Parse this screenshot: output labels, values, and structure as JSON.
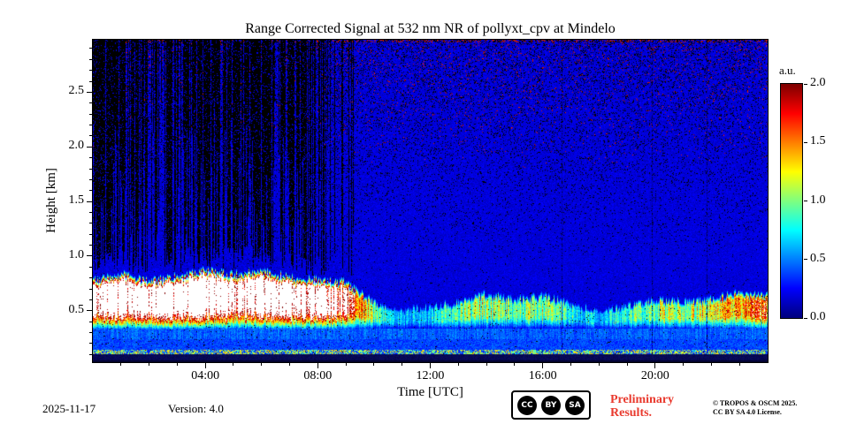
{
  "title": "Range Corrected Signal at 532 nm NR of pollyxt_cpv at Mindelo",
  "axes": {
    "xlabel": "Time [UTC]",
    "ylabel": "Height [km]",
    "x_ticks": [
      {
        "label": "04:00",
        "hour": 4
      },
      {
        "label": "08:00",
        "hour": 8
      },
      {
        "label": "12:00",
        "hour": 12
      },
      {
        "label": "16:00",
        "hour": 16
      },
      {
        "label": "20:00",
        "hour": 20
      }
    ],
    "x_minor_step_hours": 1,
    "y_ticks": [
      {
        "label": "0.5",
        "km": 0.5
      },
      {
        "label": "1.0",
        "km": 1.0
      },
      {
        "label": "1.5",
        "km": 1.5
      },
      {
        "label": "2.0",
        "km": 2.0
      },
      {
        "label": "2.5",
        "km": 2.5
      }
    ],
    "y_minor_step_km": 0.1
  },
  "colorbar": {
    "label": "a.u.",
    "ticks": [
      {
        "label": "0.0",
        "value": 0.0
      },
      {
        "label": "0.5",
        "value": 0.5
      },
      {
        "label": "1.0",
        "value": 1.0
      },
      {
        "label": "1.5",
        "value": 1.5
      },
      {
        "label": "2.0",
        "value": 2.0
      }
    ]
  },
  "footer": {
    "date": "2025-11-17",
    "version": "Version: 4.0",
    "preliminary_line1": "Preliminary",
    "preliminary_line2": "Results.",
    "copyright_line1": "© TROPOS & OSCM 2025.",
    "copyright_line2": "CC BY SA 4.0 License.",
    "license_badge": [
      "CC",
      "BY",
      "SA"
    ]
  },
  "colors": {
    "preliminary_red": "#e93a2e",
    "background_blue": "#0032e0"
  },
  "chart_data": {
    "type": "heatmap",
    "title": "Range Corrected Signal at 532 nm NR of pollyxt_cpv at Mindelo",
    "xlabel": "Time [UTC]",
    "ylabel": "Height [km]",
    "x_hours": [
      0,
      24
    ],
    "y_km": [
      0.03,
      2.98
    ],
    "vmin": 0,
    "vmax": 2,
    "value_units": "a.u.",
    "colormap": "jet",
    "saturated_color": "white",
    "seed": 1337,
    "background_value": 0.18,
    "aerosol_layer": {
      "base_km": 0.3,
      "hourly_top_km": [
        0.8,
        0.85,
        0.78,
        0.83,
        0.88,
        0.85,
        0.88,
        0.82,
        0.8,
        0.78,
        0.6,
        0.52,
        0.55,
        0.6,
        0.68,
        0.62,
        0.66,
        0.58,
        0.52,
        0.56,
        0.62,
        0.6,
        0.62,
        0.68,
        0.66
      ],
      "hourly_intensity": [
        2.8,
        2.9,
        2.8,
        2.9,
        3.0,
        2.9,
        2.9,
        2.8,
        2.7,
        2.2,
        0.9,
        0.55,
        0.6,
        0.9,
        1.1,
        0.85,
        1.0,
        0.75,
        0.6,
        0.8,
        1.0,
        1.05,
        1.1,
        1.5,
        1.6
      ]
    },
    "dropout": {
      "t_end_hour": 9.3,
      "density_by_hour": [
        0.93,
        0.9,
        0.62,
        0.72,
        0.88,
        0.9,
        0.88,
        0.6,
        0.45,
        0.22
      ]
    },
    "speckle": {
      "black_top": 0.17,
      "red_top": 0.05
    },
    "surface": {
      "dark_band_top_km": 0.095,
      "mixed_band_top_km": 0.24,
      "bright_line_km": [
        0.1,
        0.14
      ]
    },
    "thin_dark_columns_hours": [
      16.7,
      19.9,
      21.85
    ]
  }
}
